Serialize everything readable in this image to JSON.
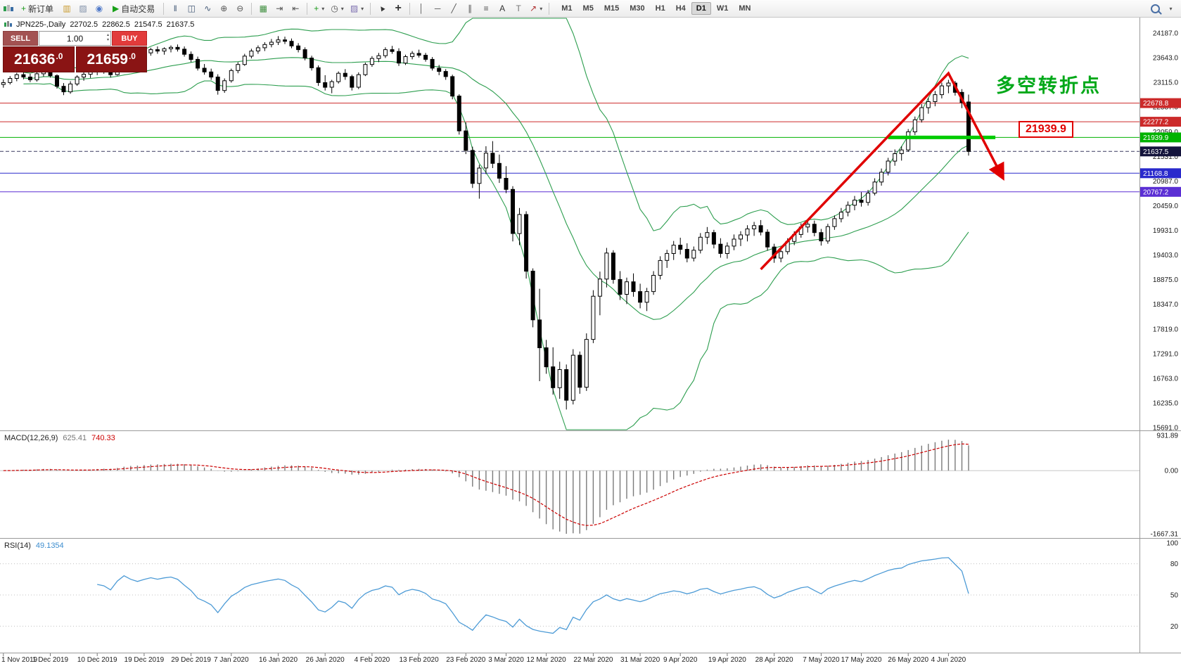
{
  "toolbar": {
    "items": [
      {
        "t": "logo",
        "name": "mt4-logo"
      },
      {
        "t": "btn",
        "name": "new-order-button",
        "glyph": "+",
        "glyph_color": "#1d9b1d",
        "label": "新订单"
      },
      {
        "t": "btn",
        "name": "charts-icon",
        "glyph": "▥",
        "glyph_color": "#c99b2f"
      },
      {
        "t": "btn",
        "name": "profiles-icon",
        "glyph": "▨",
        "glyph_color": "#8090a8"
      },
      {
        "t": "btn",
        "name": "market-icon",
        "glyph": "◉",
        "glyph_color": "#4f79c9"
      },
      {
        "t": "btn",
        "name": "autotrading-button",
        "glyph": "▶",
        "glyph_color": "#18a018",
        "label": "自动交易"
      },
      {
        "t": "sep"
      },
      {
        "t": "btn",
        "name": "bar-chart-icon",
        "glyph": "‖",
        "glyph_color": "#445a77"
      },
      {
        "t": "btn",
        "name": "candlestick-icon",
        "glyph": "◫",
        "glyph_color": "#445a77"
      },
      {
        "t": "btn",
        "name": "line-chart-icon",
        "glyph": "∿",
        "glyph_color": "#445a77"
      },
      {
        "t": "btn",
        "name": "zoom-in-icon",
        "glyph": "⊕",
        "glyph_color": "#555555"
      },
      {
        "t": "btn",
        "name": "zoom-out-icon",
        "glyph": "⊖",
        "glyph_color": "#555555"
      },
      {
        "t": "sep"
      },
      {
        "t": "btn",
        "name": "tile-windows-icon",
        "glyph": "▦",
        "glyph_color": "#3f8f3f"
      },
      {
        "t": "btn",
        "name": "auto-scroll-icon",
        "glyph": "⇥",
        "glyph_color": "#555555"
      },
      {
        "t": "btn",
        "name": "chart-shift-icon",
        "glyph": "⇤",
        "glyph_color": "#555555"
      },
      {
        "t": "sep"
      },
      {
        "t": "btn",
        "name": "indicators-icon",
        "glyph": "+",
        "glyph_color": "#1d9b1d",
        "caret": true
      },
      {
        "t": "btn",
        "name": "periods-icon",
        "glyph": "◷",
        "glyph_color": "#555555",
        "caret": true
      },
      {
        "t": "btn",
        "name": "templates-icon",
        "glyph": "▨",
        "glyph_color": "#7d6fb0",
        "caret": true
      },
      {
        "t": "sep"
      },
      {
        "t": "btn",
        "name": "cursor-icon",
        "glyph": "▲",
        "glyph_color": "#333333",
        "cls": "rot"
      },
      {
        "t": "btn",
        "name": "crosshair-icon",
        "glyph": "+",
        "glyph_color": "#333333",
        "cls": "big"
      },
      {
        "t": "sep"
      },
      {
        "t": "btn",
        "name": "vertical-line-icon",
        "glyph": "│",
        "glyph_color": "#555555"
      },
      {
        "t": "btn",
        "name": "horizontal-line-icon",
        "glyph": "─",
        "glyph_color": "#555555"
      },
      {
        "t": "btn",
        "name": "trendline-icon",
        "glyph": "╱",
        "glyph_color": "#555555"
      },
      {
        "t": "btn",
        "name": "channel-icon",
        "glyph": "∥",
        "glyph_color": "#555555"
      },
      {
        "t": "btn",
        "name": "fibonacci-icon",
        "glyph": "≡",
        "glyph_color": "#555555"
      },
      {
        "t": "btn",
        "name": "text-icon",
        "glyph": "A",
        "glyph_color": "#333333"
      },
      {
        "t": "btn",
        "name": "label-icon",
        "glyph": "T",
        "glyph_color": "#777777"
      },
      {
        "t": "btn",
        "name": "arrows-icon",
        "glyph": "↗",
        "glyph_color": "#b03030",
        "caret": true
      },
      {
        "t": "sep"
      }
    ],
    "timeframes": [
      "M1",
      "M5",
      "M15",
      "M30",
      "H1",
      "H4",
      "D1",
      "W1",
      "MN"
    ],
    "active_timeframe": "D1"
  },
  "trade_panel": {
    "sell_label": "SELL",
    "buy_label": "BUY",
    "lot_value": "1.00",
    "sell_price": "21636",
    "sell_price_frac": ".0",
    "buy_price": "21659",
    "buy_price_frac": ".0"
  },
  "chart_header": {
    "symbol_period": "JPN225-,Daily",
    "open": "22702.5",
    "high": "22862.5",
    "low": "21547.5",
    "close": "21637.5"
  },
  "annotations": {
    "turning_point_text": "多空转折点",
    "level_price_label": "21939.9"
  },
  "indicator_labels": {
    "macd_name": "MACD(12,26,9)",
    "macd_main_value": "625.41",
    "macd_signal_value": "740.33",
    "rsi_name": "RSI(14)",
    "rsi_value": "49.1354"
  },
  "chart_data": {
    "type": "candlestick",
    "symbol": "JPN225-",
    "timeframe": "Daily",
    "current_bar_ohlc": {
      "open": 22702.5,
      "high": 22862.5,
      "low": 21547.5,
      "close": 21637.5
    },
    "total_slots": 170,
    "y_scale": {
      "top_price": 24187.0,
      "bottom_price": 15691.0
    },
    "y_axis_labels": [
      "24187.0",
      "23643.0",
      "23115.0",
      "22587.0",
      "22059.0",
      "21531.0",
      "20987.0",
      "20459.0",
      "19931.0",
      "19403.0",
      "18875.0",
      "18347.0",
      "17819.0",
      "17291.0",
      "16763.0",
      "16235.0",
      "15691.0"
    ],
    "x_axis_labels": [
      {
        "text": "1 Nov 2019",
        "bar": 0
      },
      {
        "text": "1 Dec 2019",
        "bar": 7
      },
      {
        "text": "10 Dec 2019",
        "bar": 14
      },
      {
        "text": "19 Dec 2019",
        "bar": 21
      },
      {
        "text": "29 Dec 2019",
        "bar": 28
      },
      {
        "text": "7 Jan 2020",
        "bar": 34
      },
      {
        "text": "16 Jan 2020",
        "bar": 41
      },
      {
        "text": "26 Jan 2020",
        "bar": 48
      },
      {
        "text": "4 Feb 2020",
        "bar": 55
      },
      {
        "text": "13 Feb 2020",
        "bar": 62
      },
      {
        "text": "23 Feb 2020",
        "bar": 69
      },
      {
        "text": "3 Mar 2020",
        "bar": 75
      },
      {
        "text": "12 Mar 2020",
        "bar": 81
      },
      {
        "text": "22 Mar 2020",
        "bar": 88
      },
      {
        "text": "31 Mar 2020",
        "bar": 95
      },
      {
        "text": "9 Apr 2020",
        "bar": 101
      },
      {
        "text": "19 Apr 2020",
        "bar": 108
      },
      {
        "text": "28 Apr 2020",
        "bar": 115
      },
      {
        "text": "7 May 2020",
        "bar": 122
      },
      {
        "text": "17 May 2020",
        "bar": 128
      },
      {
        "text": "26 May 2020",
        "bar": 135
      },
      {
        "text": "4 Jun 2020",
        "bar": 141
      }
    ],
    "candles": [
      [
        23080,
        23190,
        23010,
        23120
      ],
      [
        23120,
        23260,
        23080,
        23210
      ],
      [
        23210,
        23330,
        23150,
        23290
      ],
      [
        23290,
        23360,
        23190,
        23240
      ],
      [
        23240,
        23310,
        23130,
        23180
      ],
      [
        23180,
        23350,
        23140,
        23310
      ],
      [
        23310,
        23440,
        23250,
        23380
      ],
      [
        23380,
        23420,
        23230,
        23270
      ],
      [
        23270,
        23300,
        22990,
        23040
      ],
      [
        23040,
        23110,
        22850,
        22920
      ],
      [
        22920,
        23150,
        22880,
        23090
      ],
      [
        23090,
        23280,
        23050,
        23240
      ],
      [
        23240,
        23350,
        23160,
        23300
      ],
      [
        23300,
        23390,
        23220,
        23350
      ],
      [
        23350,
        23450,
        23280,
        23410
      ],
      [
        23410,
        23480,
        23310,
        23380
      ],
      [
        23380,
        23420,
        23230,
        23290
      ],
      [
        23290,
        23640,
        23270,
        23580
      ],
      [
        23580,
        23860,
        23540,
        23810
      ],
      [
        23810,
        23880,
        23660,
        23730
      ],
      [
        23730,
        23810,
        23610,
        23680
      ],
      [
        23680,
        23790,
        23620,
        23760
      ],
      [
        23760,
        23870,
        23700,
        23830
      ],
      [
        23830,
        23900,
        23740,
        23800
      ],
      [
        23800,
        23880,
        23720,
        23850
      ],
      [
        23850,
        23920,
        23770,
        23880
      ],
      [
        23880,
        23940,
        23790,
        23840
      ],
      [
        23840,
        23900,
        23680,
        23730
      ],
      [
        23730,
        23790,
        23560,
        23620
      ],
      [
        23620,
        23680,
        23380,
        23430
      ],
      [
        23430,
        23520,
        23290,
        23350
      ],
      [
        23350,
        23420,
        23180,
        23240
      ],
      [
        23240,
        23300,
        22860,
        22950
      ],
      [
        22950,
        23210,
        22900,
        23160
      ],
      [
        23160,
        23420,
        23120,
        23380
      ],
      [
        23380,
        23560,
        23320,
        23510
      ],
      [
        23510,
        23740,
        23480,
        23690
      ],
      [
        23690,
        23850,
        23640,
        23800
      ],
      [
        23800,
        23920,
        23740,
        23870
      ],
      [
        23870,
        23990,
        23800,
        23940
      ],
      [
        23940,
        24060,
        23880,
        23990
      ],
      [
        23990,
        24120,
        23930,
        24040
      ],
      [
        24040,
        24110,
        23950,
        24010
      ],
      [
        24010,
        24070,
        23860,
        23910
      ],
      [
        23910,
        23970,
        23770,
        23830
      ],
      [
        23830,
        23880,
        23600,
        23650
      ],
      [
        23650,
        23700,
        23380,
        23440
      ],
      [
        23440,
        23490,
        23050,
        23120
      ],
      [
        23120,
        23280,
        22950,
        23020
      ],
      [
        23020,
        23180,
        22890,
        23140
      ],
      [
        23140,
        23360,
        23100,
        23320
      ],
      [
        23320,
        23410,
        23180,
        23250
      ],
      [
        23250,
        23290,
        22950,
        23020
      ],
      [
        23020,
        23340,
        22980,
        23290
      ],
      [
        23290,
        23550,
        23260,
        23510
      ],
      [
        23510,
        23690,
        23460,
        23640
      ],
      [
        23640,
        23760,
        23560,
        23700
      ],
      [
        23700,
        23880,
        23650,
        23830
      ],
      [
        23830,
        23910,
        23740,
        23790
      ],
      [
        23790,
        23860,
        23480,
        23540
      ],
      [
        23540,
        23720,
        23500,
        23680
      ],
      [
        23680,
        23800,
        23620,
        23750
      ],
      [
        23750,
        23830,
        23660,
        23710
      ],
      [
        23710,
        23760,
        23570,
        23620
      ],
      [
        23620,
        23670,
        23380,
        23430
      ],
      [
        23430,
        23500,
        23280,
        23360
      ],
      [
        23360,
        23410,
        23180,
        23250
      ],
      [
        23250,
        23290,
        22760,
        22830
      ],
      [
        22830,
        22870,
        22000,
        22080
      ],
      [
        22080,
        22260,
        21580,
        21660
      ],
      [
        21660,
        21740,
        20850,
        20950
      ],
      [
        20950,
        21350,
        20620,
        21280
      ],
      [
        21280,
        21750,
        21150,
        21600
      ],
      [
        21600,
        21860,
        21280,
        21380
      ],
      [
        21380,
        21570,
        20960,
        21060
      ],
      [
        21060,
        21320,
        20740,
        20820
      ],
      [
        20820,
        20890,
        19700,
        19870
      ],
      [
        19870,
        20420,
        19620,
        20280
      ],
      [
        20280,
        20350,
        18900,
        19060
      ],
      [
        19060,
        19120,
        17850,
        18010
      ],
      [
        18010,
        18680,
        16690,
        17410
      ],
      [
        17410,
        17580,
        16850,
        17000
      ],
      [
        17000,
        17420,
        16400,
        16550
      ],
      [
        16550,
        17110,
        16310,
        16940
      ],
      [
        16940,
        17050,
        16080,
        16280
      ],
      [
        16280,
        17380,
        16190,
        17250
      ],
      [
        17250,
        17330,
        16420,
        16560
      ],
      [
        16560,
        17720,
        16480,
        17590
      ],
      [
        17590,
        18650,
        17510,
        18520
      ],
      [
        18520,
        19050,
        18110,
        18890
      ],
      [
        18890,
        19560,
        18710,
        19450
      ],
      [
        19450,
        19510,
        18790,
        18880
      ],
      [
        18880,
        19060,
        18440,
        18560
      ],
      [
        18560,
        18920,
        18350,
        18830
      ],
      [
        18830,
        19010,
        18510,
        18620
      ],
      [
        18620,
        18790,
        18260,
        18390
      ],
      [
        18390,
        18700,
        18200,
        18620
      ],
      [
        18620,
        19060,
        18550,
        18970
      ],
      [
        18970,
        19380,
        18880,
        19290
      ],
      [
        19290,
        19520,
        19130,
        19440
      ],
      [
        19440,
        19710,
        19300,
        19620
      ],
      [
        19620,
        19780,
        19420,
        19530
      ],
      [
        19530,
        19660,
        19250,
        19340
      ],
      [
        19340,
        19590,
        19270,
        19510
      ],
      [
        19510,
        19880,
        19440,
        19790
      ],
      [
        19790,
        20010,
        19640,
        19890
      ],
      [
        19890,
        19950,
        19550,
        19640
      ],
      [
        19640,
        19770,
        19350,
        19440
      ],
      [
        19440,
        19680,
        19330,
        19600
      ],
      [
        19600,
        19850,
        19510,
        19750
      ],
      [
        19750,
        19920,
        19600,
        19840
      ],
      [
        19840,
        20050,
        19700,
        19970
      ],
      [
        19970,
        20120,
        19820,
        20040
      ],
      [
        20040,
        20160,
        19830,
        19900
      ],
      [
        19900,
        19960,
        19500,
        19580
      ],
      [
        19580,
        19650,
        19240,
        19340
      ],
      [
        19340,
        19560,
        19250,
        19480
      ],
      [
        19480,
        19770,
        19420,
        19700
      ],
      [
        19700,
        19920,
        19620,
        19850
      ],
      [
        19850,
        20090,
        19780,
        20010
      ],
      [
        20010,
        20180,
        19890,
        20070
      ],
      [
        20070,
        20150,
        19810,
        19890
      ],
      [
        19890,
        19970,
        19610,
        19710
      ],
      [
        19710,
        20080,
        19650,
        20020
      ],
      [
        20020,
        20260,
        19950,
        20190
      ],
      [
        20190,
        20420,
        20110,
        20330
      ],
      [
        20330,
        20560,
        20240,
        20480
      ],
      [
        20480,
        20680,
        20370,
        20590
      ],
      [
        20590,
        20760,
        20450,
        20540
      ],
      [
        20540,
        20810,
        20470,
        20740
      ],
      [
        20740,
        21060,
        20690,
        20980
      ],
      [
        20980,
        21270,
        20900,
        21190
      ],
      [
        21190,
        21500,
        21120,
        21430
      ],
      [
        21430,
        21680,
        21330,
        21590
      ],
      [
        21590,
        21750,
        21440,
        21670
      ],
      [
        21670,
        22120,
        21630,
        22060
      ],
      [
        22060,
        22390,
        21990,
        22320
      ],
      [
        22320,
        22660,
        22260,
        22580
      ],
      [
        22580,
        22790,
        22450,
        22710
      ],
      [
        22710,
        22940,
        22610,
        22860
      ],
      [
        22860,
        23120,
        22780,
        23050
      ],
      [
        23050,
        23180,
        22890,
        23110
      ],
      [
        23110,
        23155,
        22840,
        22910
      ],
      [
        22910,
        22980,
        22570,
        22690
      ],
      [
        22702.5,
        22862.5,
        21547.5,
        21637.5
      ]
    ],
    "bollinger": {
      "period": 20,
      "deviation": 2,
      "color": "#2d9e4f"
    },
    "hlines": [
      {
        "price": 22678.8,
        "color": "#cc2a2a",
        "tag": "22678.8",
        "tag_bg": "#cc2a2a"
      },
      {
        "price": 22277.2,
        "color": "#cc2a2a",
        "tag": "22277.2",
        "tag_bg": "#cc2a2a"
      },
      {
        "price": 21939.9,
        "color": "#00b300",
        "tag": "21939.9",
        "tag_bg": "#00b300"
      },
      {
        "price": 21168.8,
        "color": "#2a2acc",
        "tag": "21168.8",
        "tag_bg": "#2a2acc"
      },
      {
        "price": 20767.2,
        "color": "#5b2fd4",
        "tag": "20767.2",
        "tag_bg": "#5b2fd4"
      }
    ],
    "current_price_line": {
      "price": 21637.5,
      "tag": "21637.5",
      "tag_bg": "#14143c"
    },
    "level_segment": {
      "price": 21939.9,
      "from_bar": 132,
      "to_bar": 148,
      "color": "#00cc00",
      "width": 5
    },
    "trend_arrow": {
      "color": "#e00000",
      "width": 3.5,
      "points": [
        [
          113,
          19100
        ],
        [
          141,
          23320
        ],
        [
          149,
          21100
        ]
      ]
    },
    "macd": {
      "fast": 12,
      "slow": 26,
      "signal": 9,
      "scale_max": 931.89,
      "scale_min": -1667.31,
      "axis_labels": [
        "931.89",
        "0.00",
        "-1667.31"
      ],
      "hist_color": "#7a7a7a",
      "signal_color": "#cc0000"
    },
    "rsi": {
      "period": 14,
      "levels": [
        80,
        50,
        20
      ],
      "axis_labels": [
        "100",
        "80",
        "50",
        "20"
      ],
      "color": "#4d9bd6",
      "scale": [
        0,
        100
      ]
    }
  }
}
